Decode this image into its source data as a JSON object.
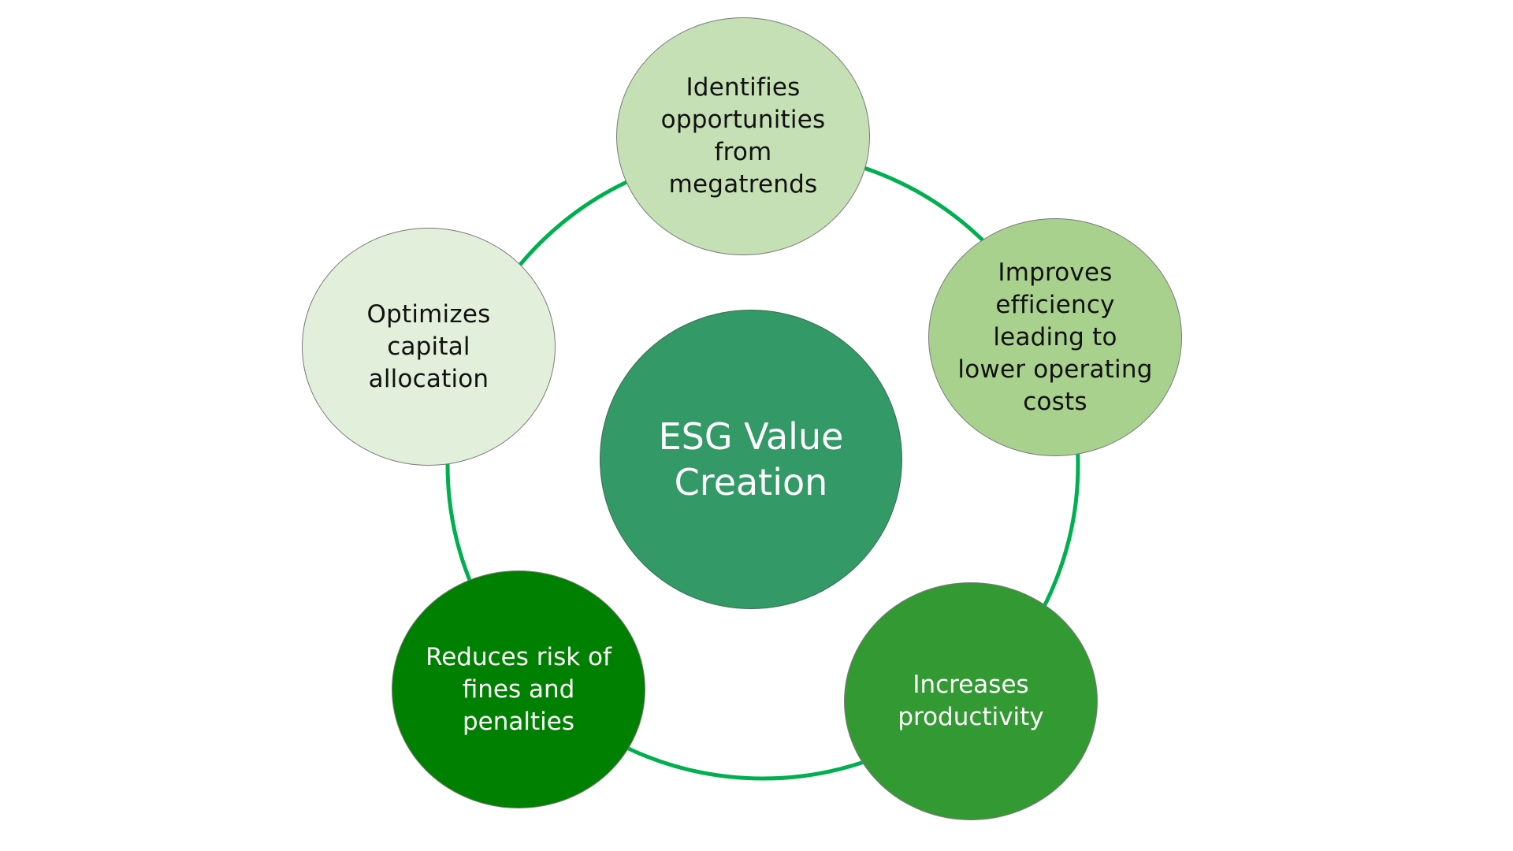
{
  "diagram": {
    "center": {
      "label": "ESG Value\nCreation",
      "color": "#339966"
    },
    "ring_color": "#00b050",
    "nodes": [
      {
        "id": "identifies-opportunities",
        "label": "Identifies\nopportunities\nfrom\nmegatrends",
        "color": "#c5e0b4"
      },
      {
        "id": "improves-efficiency",
        "label": "Improves\nefficiency\nleading to\nlower operating\ncosts",
        "color": "#a9d18e"
      },
      {
        "id": "increases-productivity",
        "label": "Increases\nproductivity",
        "color": "#339933"
      },
      {
        "id": "reduces-risk",
        "label": "Reduces risk of\nfines and\npenalties",
        "color": "#008000"
      },
      {
        "id": "optimizes-capital",
        "label": "Optimizes\ncapital\nallocation",
        "color": "#e2efda"
      }
    ]
  }
}
